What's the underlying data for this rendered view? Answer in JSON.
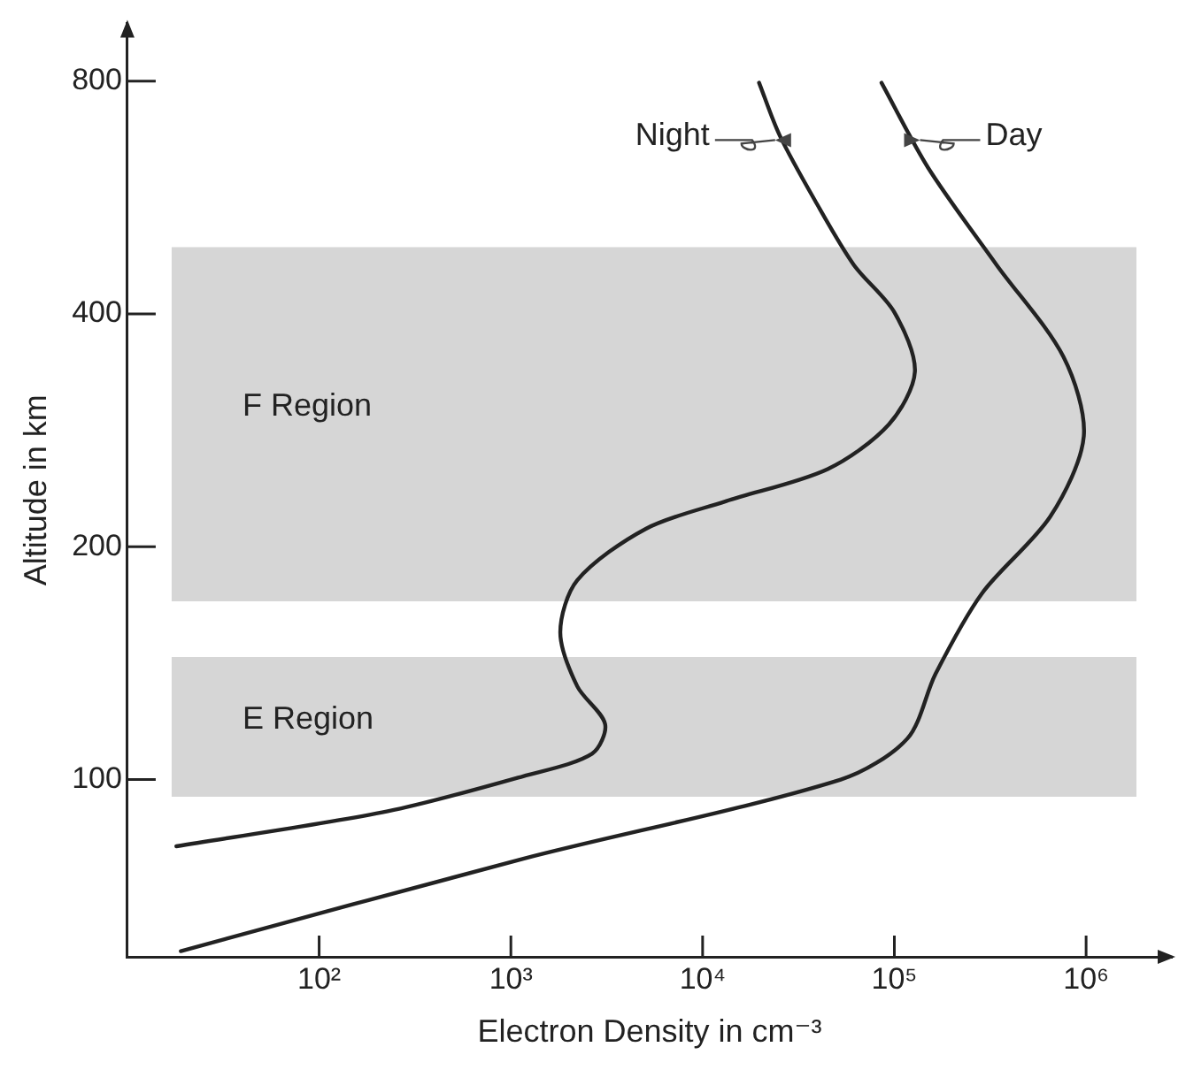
{
  "chart_data": {
    "type": "line",
    "xlabel": "Electron Density in cm⁻³",
    "ylabel": "Altitude in km",
    "log": "xy",
    "grid": false,
    "legend": false,
    "marker": "none",
    "line_style": "solid",
    "xlim": [
      10,
      2800000
    ],
    "ylim": [
      59,
      950
    ],
    "xticks": [
      {
        "value": 100,
        "label": "10²"
      },
      {
        "value": 1000,
        "label": "10³"
      },
      {
        "value": 10000,
        "label": "10⁴"
      },
      {
        "value": 100000,
        "label": "10⁵"
      },
      {
        "value": 1000000,
        "label": "10⁶"
      }
    ],
    "yticks": [
      100,
      200,
      400,
      800
    ],
    "bands": [
      {
        "axis": "y",
        "from": 170,
        "to": 488,
        "label": "F Region",
        "color": "#d6d6d6"
      },
      {
        "axis": "y",
        "from": 95,
        "to": 144,
        "label": "E Region",
        "color": "#d6d6d6"
      }
    ],
    "series": [
      {
        "name": "Night",
        "color": "#222222",
        "x": [
          18,
          228,
          1160,
          2650,
          3100,
          2220,
          1810,
          2220,
          5060,
          13200,
          44900,
          93800,
          128000,
          100000,
          61400,
          38500,
          25200,
          19700
        ],
        "values": [
          82,
          91,
          101,
          108,
          118,
          132,
          155,
          181,
          211,
          229,
          252,
          288,
          337,
          402,
          463,
          561,
          681,
          796
        ]
      },
      {
        "name": "Day",
        "color": "#222222",
        "x": [
          19,
          1160,
          52500,
          117000,
          164000,
          286000,
          652000,
          973000,
          762000,
          341000,
          150000,
          85700
        ],
        "values": [
          60,
          79,
          100,
          113,
          137,
          174,
          219,
          278,
          352,
          463,
          618,
          796
        ]
      }
    ]
  }
}
